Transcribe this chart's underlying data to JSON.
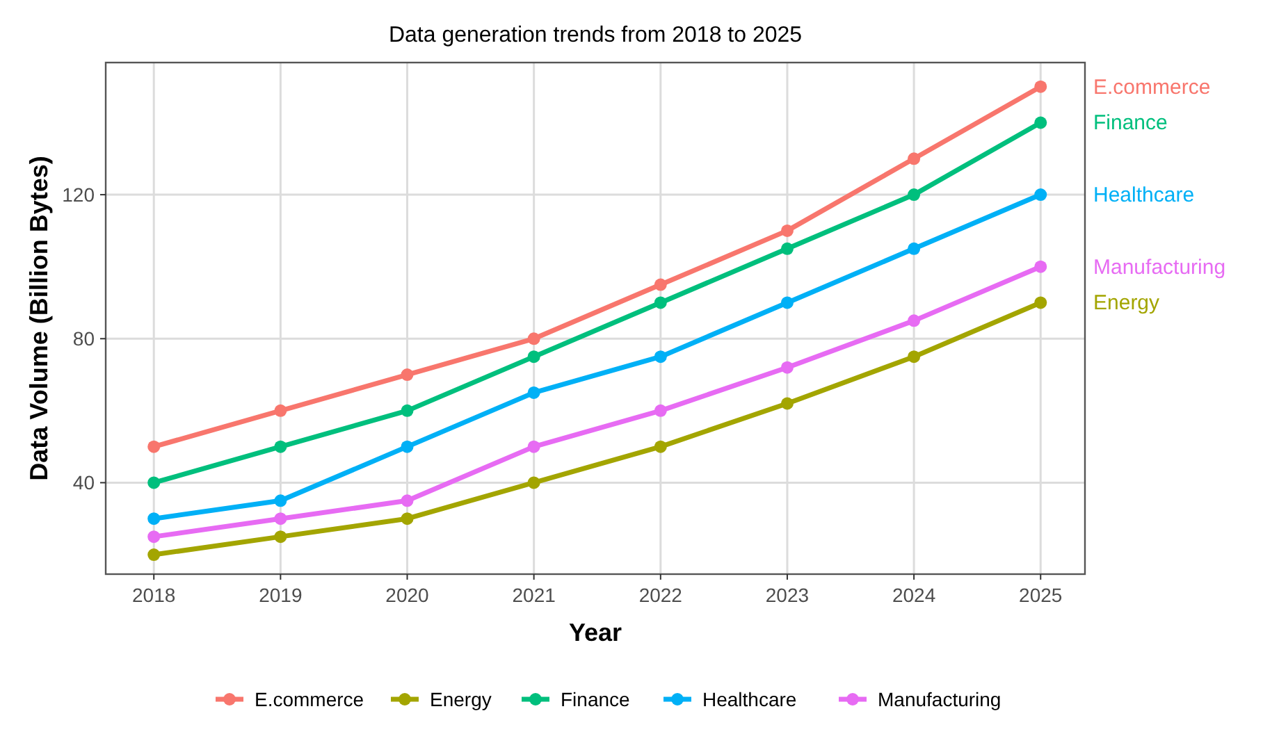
{
  "chart_data": {
    "type": "line",
    "subtitle": "Data generation trends from 2018 to 2025",
    "xlabel": "Year",
    "ylabel": "Data Volume (Billion Bytes)",
    "x": [
      2018,
      2019,
      2020,
      2021,
      2022,
      2023,
      2024,
      2025
    ],
    "series": [
      {
        "name": "E.commerce",
        "color": "#f8766d",
        "values": [
          50,
          60,
          70,
          80,
          95,
          110,
          130,
          150
        ]
      },
      {
        "name": "Energy",
        "color": "#a3a500",
        "values": [
          20,
          25,
          30,
          40,
          50,
          62,
          75,
          90
        ]
      },
      {
        "name": "Finance",
        "color": "#00bf7d",
        "values": [
          40,
          50,
          60,
          75,
          90,
          105,
          120,
          140
        ]
      },
      {
        "name": "Healthcare",
        "color": "#00b0f6",
        "values": [
          30,
          35,
          50,
          65,
          75,
          90,
          105,
          120
        ]
      },
      {
        "name": "Manufacturing",
        "color": "#e76bf3",
        "values": [
          25,
          30,
          35,
          50,
          60,
          72,
          85,
          100
        ]
      }
    ],
    "xlim": [
      2017.62,
      2025.35
    ],
    "ylim": [
      14.6,
      156.7
    ],
    "xticks": [
      2018,
      2019,
      2020,
      2021,
      2022,
      2023,
      2024,
      2025
    ],
    "yticks": [
      40,
      80,
      120
    ],
    "grid": true,
    "legend": "bottom",
    "marker": "circle",
    "line_style": "solid"
  }
}
